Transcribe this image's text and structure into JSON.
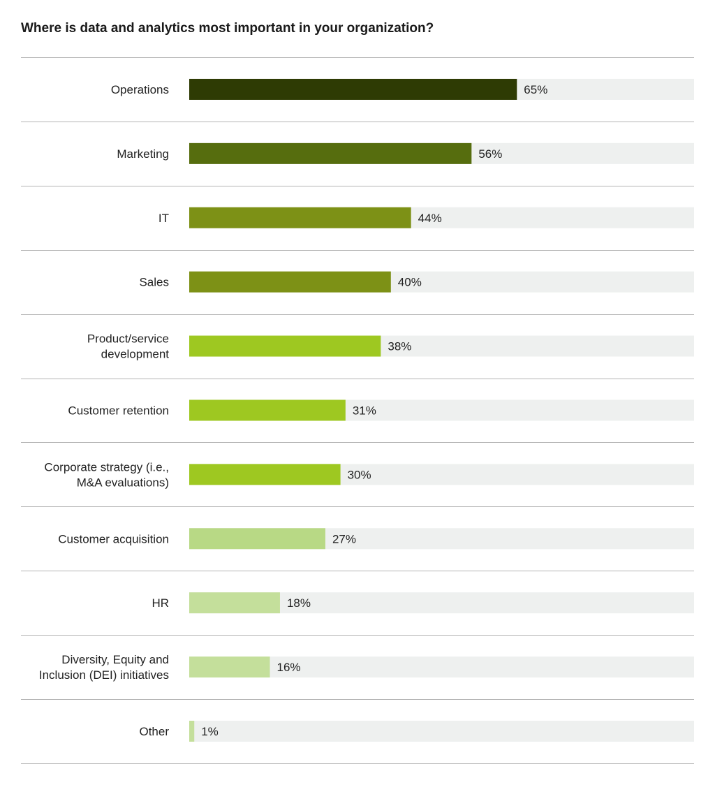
{
  "chart_data": {
    "type": "bar",
    "orientation": "horizontal",
    "title": "Where is data and analytics most important in your organization?",
    "categories": [
      "Operations",
      "Marketing",
      "IT",
      "Sales",
      "Product/service development",
      "Customer retention",
      "Corporate strategy (i.e., M&A evaluations)",
      "Customer acquisition",
      "HR",
      "Diversity, Equity and Inclusion (DEI) initiatives",
      "Other"
    ],
    "category_lines": [
      [
        "Operations"
      ],
      [
        "Marketing"
      ],
      [
        "IT"
      ],
      [
        "Sales"
      ],
      [
        "Product/service",
        "development"
      ],
      [
        "Customer retention"
      ],
      [
        "Corporate strategy (i.e.,",
        "M&A evaluations)"
      ],
      [
        "Customer acquisition"
      ],
      [
        "HR"
      ],
      [
        "Diversity, Equity and",
        "Inclusion (DEI) initiatives"
      ],
      [
        "Other"
      ]
    ],
    "values": [
      65,
      56,
      44,
      40,
      38,
      31,
      30,
      27,
      18,
      16,
      1
    ],
    "value_labels": [
      "65%",
      "56%",
      "44%",
      "40%",
      "38%",
      "31%",
      "30%",
      "27%",
      "18%",
      "16%",
      "1%"
    ],
    "unit": "%",
    "xlim": [
      0,
      100
    ],
    "bar_colors": [
      "#2e3b04",
      "#566d0e",
      "#7d9116",
      "#7d9116",
      "#9ec821",
      "#9ec821",
      "#9ec821",
      "#b8d985",
      "#c4df9b",
      "#c4df9b",
      "#c4df9b"
    ],
    "track_color": "#eef0ef",
    "separator_color": "#b3b3b3",
    "grid": false,
    "legend": "none"
  }
}
